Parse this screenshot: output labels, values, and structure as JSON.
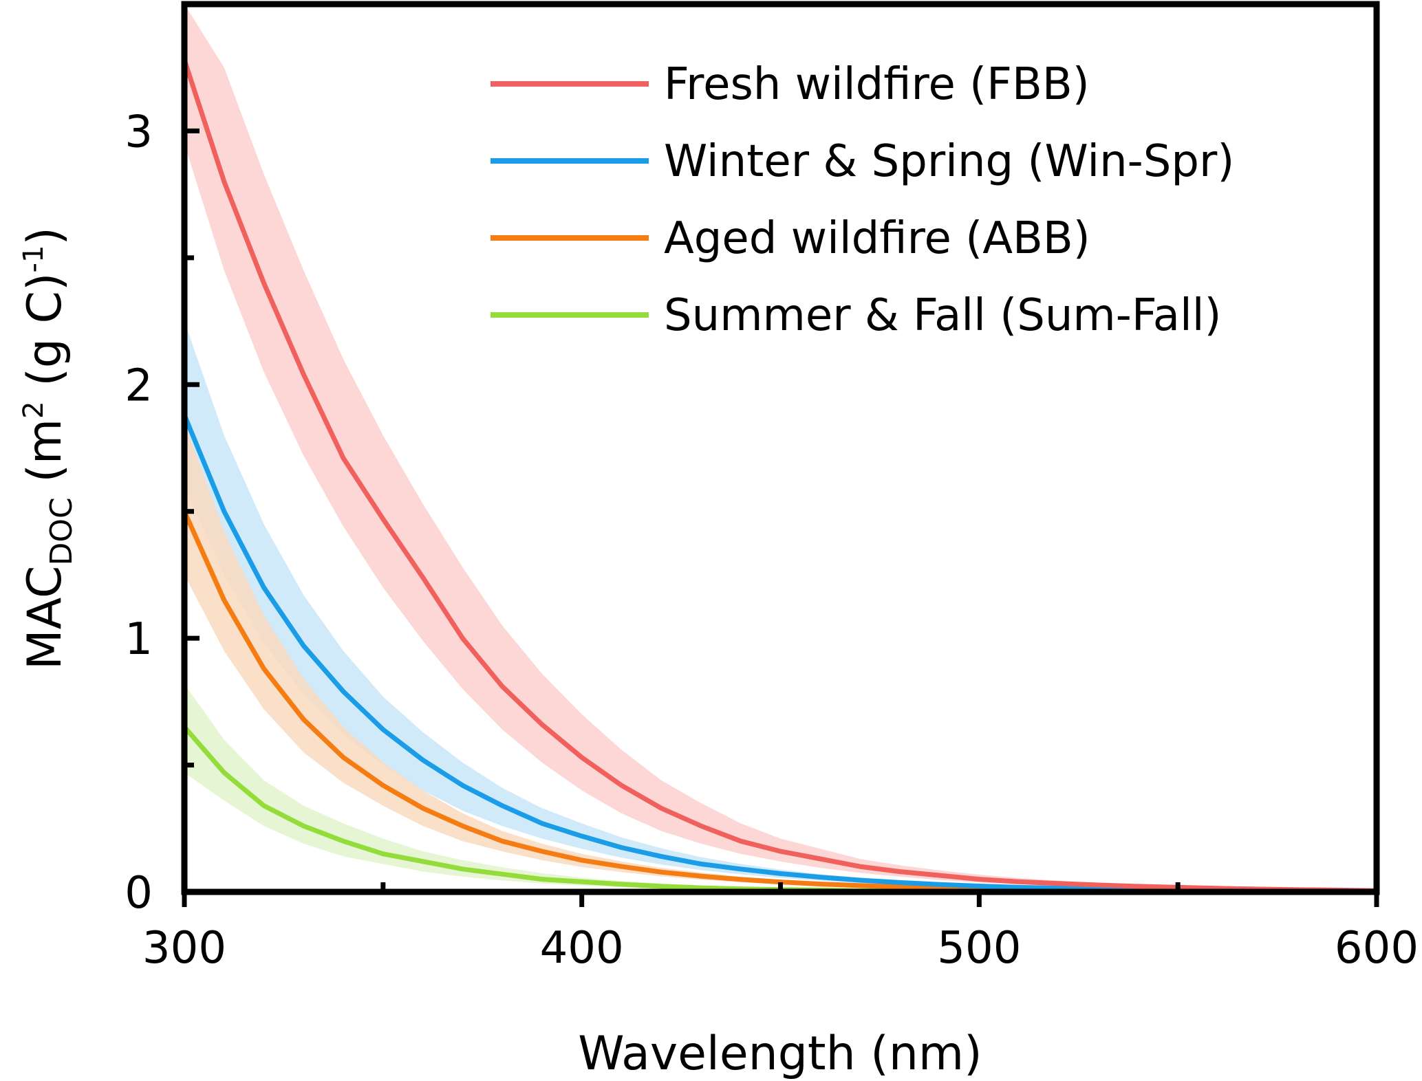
{
  "chart_data": {
    "type": "line",
    "xlabel": "Wavelength (nm)",
    "ylabel": {
      "main": "MAC",
      "subscript": "DOC",
      "unit_start": " (m",
      "unit_sup": "2",
      "unit_mid": " (g C)",
      "unit_sup2": "-1",
      "unit_end": ")"
    },
    "xlim": [
      300,
      600
    ],
    "ylim": [
      0,
      3.5
    ],
    "x_ticks": [
      "300",
      "400",
      "500",
      "600"
    ],
    "x_tick_values": [
      300,
      400,
      500,
      600
    ],
    "x_minor_ticks": [
      350,
      450,
      550
    ],
    "y_ticks": [
      "0",
      "1",
      "2",
      "3"
    ],
    "y_tick_values": [
      0,
      1,
      2,
      3
    ],
    "y_minor_ticks": [
      0.5,
      1.5,
      2.5
    ],
    "grid": false,
    "legend_position": "top-right",
    "x": [
      300,
      310,
      320,
      330,
      340,
      350,
      360,
      370,
      380,
      390,
      400,
      410,
      420,
      430,
      440,
      450,
      460,
      470,
      480,
      490,
      500,
      510,
      520,
      530,
      540,
      550,
      560,
      570,
      580,
      590,
      600
    ],
    "series": [
      {
        "name": "Fresh wildfire (FBB)",
        "color": "#f0605d",
        "band_color": "#fbd0cf",
        "values": [
          3.28,
          2.8,
          2.4,
          2.04,
          1.71,
          1.47,
          1.24,
          1.0,
          0.81,
          0.66,
          0.53,
          0.42,
          0.33,
          0.26,
          0.2,
          0.16,
          0.13,
          0.1,
          0.08,
          0.065,
          0.05,
          0.04,
          0.033,
          0.027,
          0.022,
          0.018,
          0.014,
          0.011,
          0.009,
          0.007,
          0.005
        ],
        "lower": [
          2.95,
          2.45,
          2.05,
          1.72,
          1.44,
          1.2,
          0.99,
          0.8,
          0.64,
          0.51,
          0.4,
          0.31,
          0.24,
          0.19,
          0.15,
          0.12,
          0.095,
          0.075,
          0.06,
          0.047,
          0.037,
          0.029,
          0.023,
          0.018,
          0.014,
          0.011,
          0.009,
          0.007,
          0.005,
          0.004,
          0.003
        ],
        "upper": [
          3.5,
          3.25,
          2.83,
          2.45,
          2.1,
          1.8,
          1.53,
          1.28,
          1.05,
          0.86,
          0.7,
          0.56,
          0.44,
          0.35,
          0.27,
          0.21,
          0.17,
          0.13,
          0.105,
          0.085,
          0.068,
          0.055,
          0.044,
          0.035,
          0.028,
          0.022,
          0.018,
          0.014,
          0.011,
          0.009,
          0.007
        ]
      },
      {
        "name": "Winter & Spring (Win-Spr)",
        "color": "#1a9de6",
        "band_color": "#c9e6f8",
        "values": [
          1.88,
          1.5,
          1.2,
          0.97,
          0.79,
          0.64,
          0.52,
          0.42,
          0.34,
          0.27,
          0.22,
          0.175,
          0.14,
          0.11,
          0.09,
          0.072,
          0.058,
          0.046,
          0.037,
          0.029,
          0.023,
          0.018,
          0.015,
          0.012,
          0.009,
          0.007,
          0.006,
          0.005,
          0.004,
          0.003,
          0.002
        ],
        "lower": [
          1.6,
          1.25,
          0.98,
          0.78,
          0.62,
          0.5,
          0.4,
          0.32,
          0.26,
          0.21,
          0.17,
          0.135,
          0.108,
          0.086,
          0.069,
          0.055,
          0.044,
          0.035,
          0.028,
          0.022,
          0.018,
          0.014,
          0.011,
          0.009,
          0.007,
          0.006,
          0.005,
          0.004,
          0.003,
          0.002,
          0.002
        ],
        "upper": [
          2.25,
          1.8,
          1.45,
          1.17,
          0.95,
          0.77,
          0.63,
          0.51,
          0.41,
          0.33,
          0.27,
          0.215,
          0.172,
          0.137,
          0.11,
          0.088,
          0.07,
          0.056,
          0.045,
          0.036,
          0.029,
          0.023,
          0.018,
          0.015,
          0.012,
          0.009,
          0.007,
          0.006,
          0.005,
          0.004,
          0.003
        ]
      },
      {
        "name": "Aged wildfire (ABB)",
        "color": "#f57c13",
        "band_color": "#f9d9bf",
        "values": [
          1.5,
          1.15,
          0.88,
          0.68,
          0.53,
          0.42,
          0.33,
          0.26,
          0.2,
          0.16,
          0.125,
          0.1,
          0.078,
          0.062,
          0.049,
          0.039,
          0.031,
          0.025,
          0.02,
          0.016,
          0.013,
          0.011,
          0.009,
          0.007,
          0.006,
          0.005,
          0.004,
          0.003,
          0.002,
          0.002,
          0.001
        ],
        "lower": [
          1.25,
          0.95,
          0.72,
          0.55,
          0.43,
          0.34,
          0.26,
          0.2,
          0.16,
          0.125,
          0.098,
          0.078,
          0.061,
          0.048,
          0.038,
          0.03,
          0.024,
          0.019,
          0.015,
          0.012,
          0.01,
          0.008,
          0.007,
          0.005,
          0.004,
          0.004,
          0.003,
          0.002,
          0.002,
          0.001,
          0.001
        ],
        "upper": [
          1.85,
          1.42,
          1.09,
          0.84,
          0.65,
          0.51,
          0.4,
          0.31,
          0.24,
          0.19,
          0.15,
          0.12,
          0.095,
          0.076,
          0.06,
          0.048,
          0.038,
          0.03,
          0.024,
          0.019,
          0.016,
          0.013,
          0.011,
          0.009,
          0.007,
          0.006,
          0.005,
          0.004,
          0.003,
          0.002,
          0.002
        ]
      },
      {
        "name": "Summer & Fall (Sum-Fall)",
        "color": "#93dc3a",
        "band_color": "#e2f5cd",
        "values": [
          0.65,
          0.47,
          0.34,
          0.26,
          0.2,
          0.15,
          0.12,
          0.09,
          0.07,
          0.05,
          0.04,
          0.03,
          0.022,
          0.016,
          0.012,
          0.009,
          0.007,
          0.005,
          0.004,
          0.003,
          0.002,
          0.002,
          0.001,
          0.001,
          0.001,
          0.0,
          0.0,
          0.0,
          0.0,
          0.0,
          0.0
        ],
        "lower": [
          0.47,
          0.36,
          0.26,
          0.19,
          0.14,
          0.11,
          0.08,
          0.06,
          0.045,
          0.033,
          0.025,
          0.018,
          0.013,
          0.009,
          0.006,
          0.004,
          0.003,
          0.002,
          0.001,
          0.001,
          0.0,
          0.0,
          0.0,
          0.0,
          0.0,
          0.0,
          0.0,
          0.0,
          0.0,
          0.0,
          0.0
        ],
        "upper": [
          0.82,
          0.6,
          0.44,
          0.34,
          0.27,
          0.21,
          0.16,
          0.125,
          0.097,
          0.074,
          0.056,
          0.043,
          0.033,
          0.025,
          0.019,
          0.014,
          0.011,
          0.008,
          0.006,
          0.005,
          0.004,
          0.003,
          0.002,
          0.002,
          0.001,
          0.001,
          0.001,
          0.0,
          0.0,
          0.0,
          0.0
        ]
      }
    ]
  }
}
